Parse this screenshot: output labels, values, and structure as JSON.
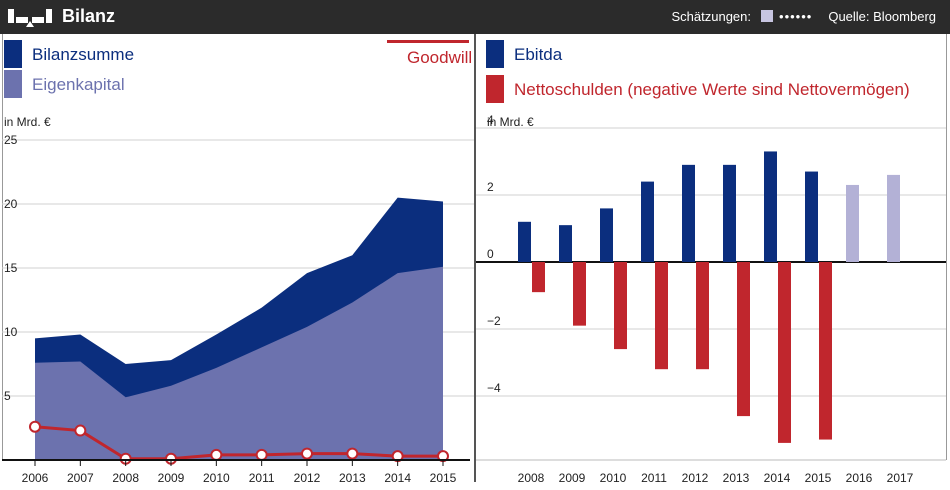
{
  "header": {
    "title": "Bilanz",
    "estimates_label": "Schätzungen:",
    "estimates_dots": "••••••",
    "source": "Quelle: Bloomberg"
  },
  "colors": {
    "bar": "#2b2b2b",
    "navy": "#0b2e7e",
    "lavender": "#6c72ae",
    "red": "#c0262d",
    "estimate": "#b3b1d6"
  },
  "chart_data": [
    {
      "type": "area",
      "title": "Bilanz",
      "ylabel": "in Mrd. €",
      "ylim": [
        0,
        25
      ],
      "yticks": [
        "25",
        "20",
        "15",
        "10",
        "5"
      ],
      "categories": [
        "2006",
        "2007",
        "2008",
        "2009",
        "2010",
        "2011",
        "2012",
        "2013",
        "2014",
        "2015"
      ],
      "series": [
        {
          "name": "Bilanzsumme",
          "kind": "area",
          "values": [
            9.5,
            9.8,
            7.5,
            7.8,
            9.8,
            11.9,
            14.6,
            16.0,
            20.5,
            20.2
          ]
        },
        {
          "name": "Eigenkapital",
          "kind": "area",
          "values": [
            7.6,
            7.7,
            4.9,
            5.8,
            7.2,
            8.8,
            10.4,
            12.3,
            14.6,
            15.1
          ]
        },
        {
          "name": "Goodwill",
          "kind": "line",
          "values": [
            2.6,
            2.3,
            0.1,
            0.1,
            0.4,
            0.4,
            0.5,
            0.5,
            0.3,
            0.3
          ]
        }
      ]
    },
    {
      "type": "bar",
      "ylabel": "in Mrd. €",
      "ylim": [
        -5.5,
        4
      ],
      "yticks": [
        "4",
        "2",
        "0",
        "−2",
        "−4"
      ],
      "categories": [
        "2008",
        "2009",
        "2010",
        "2011",
        "2012",
        "2013",
        "2014",
        "2015",
        "2016",
        "2017"
      ],
      "estimate_from": "2016",
      "series": [
        {
          "name": "Ebitda",
          "values": [
            1.2,
            1.1,
            1.6,
            2.4,
            2.9,
            2.9,
            3.3,
            2.7,
            2.3,
            2.6
          ]
        },
        {
          "name": "Nettoschulden (negative Werte sind Nettovermögen)",
          "values": [
            -0.9,
            -1.9,
            -2.6,
            -3.2,
            -3.2,
            -4.6,
            -5.4,
            -5.3,
            null,
            null
          ]
        }
      ]
    }
  ]
}
